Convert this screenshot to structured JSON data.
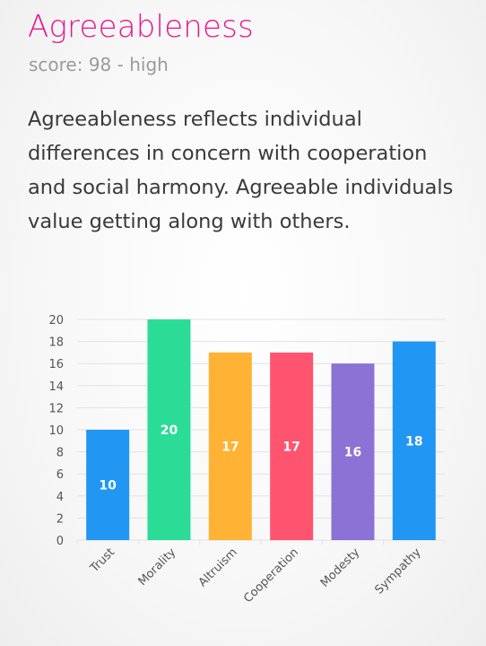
{
  "trait": {
    "title": "Agreeableness",
    "score_text": "score: 98 - high",
    "description": "Agreeableness reflects individual differences in concern with cooperation and social harmony. Agreeable individuals value getting along with others."
  },
  "colors": {
    "title": "#e8168b",
    "grid": "#e2e2e2",
    "axis_text": "#555555",
    "label_text": "#ffffff"
  },
  "chart_data": {
    "type": "bar",
    "categories": [
      "Trust",
      "Morality",
      "Altruism",
      "Cooperation",
      "Modesty",
      "Sympathy"
    ],
    "values": [
      10,
      20,
      17,
      17,
      16,
      18
    ],
    "colors": [
      "#2196f3",
      "#2bdc96",
      "#ffb234",
      "#ff5470",
      "#8c72d4",
      "#2196f3"
    ],
    "ylim": [
      0,
      20
    ],
    "yticks": [
      "0",
      "2",
      "4",
      "6",
      "8",
      "10",
      "12",
      "14",
      "16",
      "18",
      "20"
    ],
    "grid": true,
    "data_labels": true
  }
}
